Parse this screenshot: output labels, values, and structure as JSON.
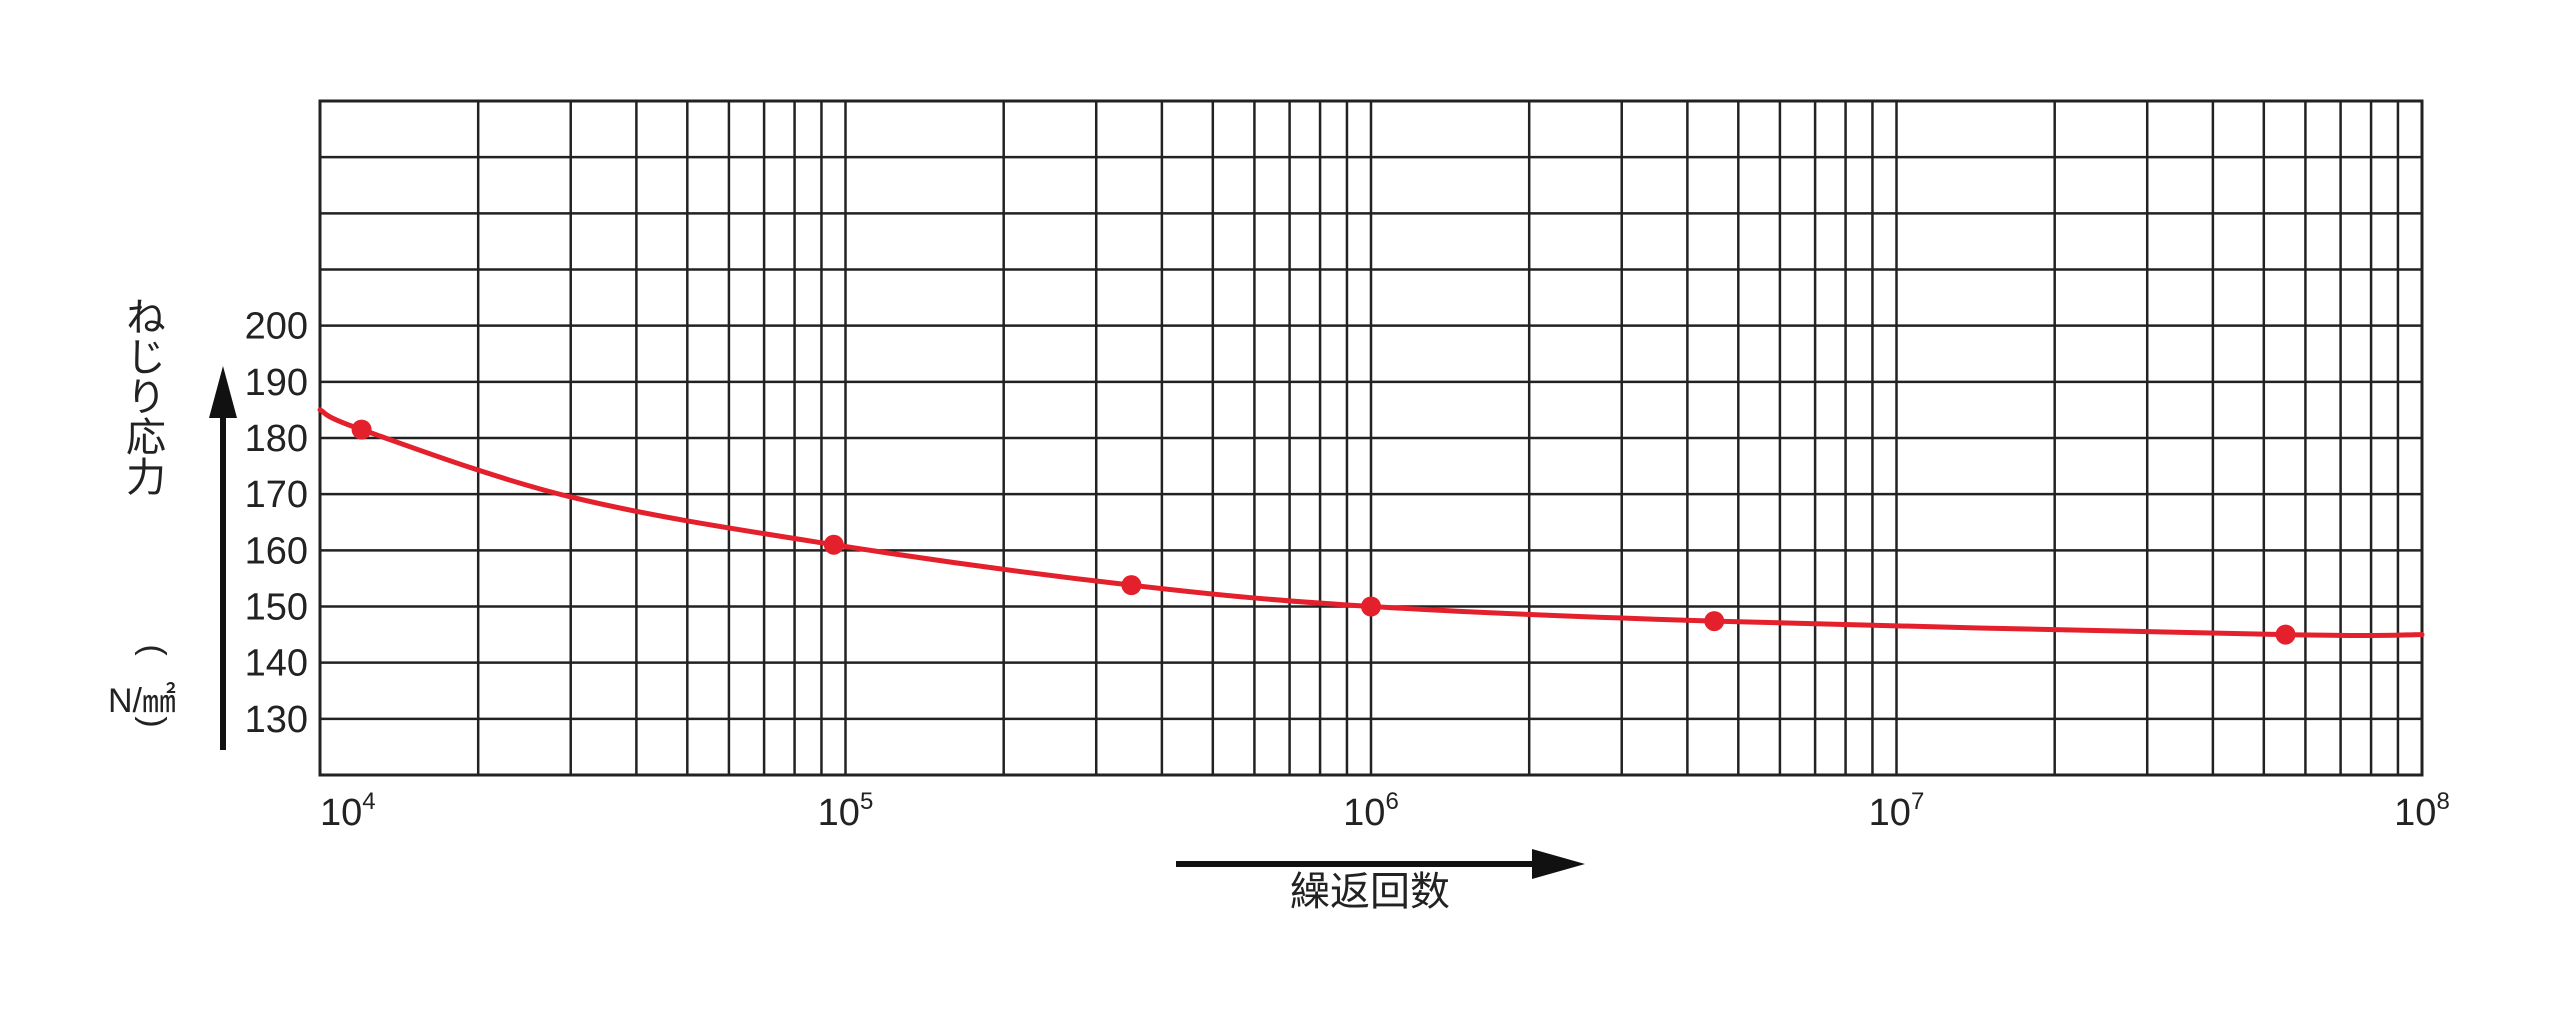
{
  "chart_data": {
    "type": "line",
    "xscale": "log",
    "xlim": [
      10000,
      100000000
    ],
    "ylim": [
      120,
      240
    ],
    "grid": true,
    "x_tick_labels": [
      {
        "base": "10",
        "exp": "4"
      },
      {
        "base": "10",
        "exp": "5"
      },
      {
        "base": "10",
        "exp": "6"
      },
      {
        "base": "10",
        "exp": "7"
      },
      {
        "base": "10",
        "exp": "8"
      }
    ],
    "y_tick_labels": [
      "130",
      "140",
      "150",
      "160",
      "170",
      "180",
      "190",
      "200"
    ],
    "xlabel": "繰返回数",
    "ylabel": "ねじり応力",
    "yunit": "N/㎟",
    "series": [
      {
        "color": "#e3202c",
        "curve": {
          "x": [
            10000,
            12000,
            30000,
            95000,
            350000,
            1000000,
            4500000,
            55000000,
            100000000
          ],
          "y": [
            185,
            181.5,
            169.5,
            161,
            153.8,
            150,
            147.4,
            145,
            145
          ]
        },
        "points": {
          "x": [
            12000,
            95000,
            350000,
            1000000,
            4500000,
            55000000
          ],
          "y": [
            181.5,
            161,
            153.8,
            150,
            147.4,
            145
          ]
        }
      }
    ]
  }
}
